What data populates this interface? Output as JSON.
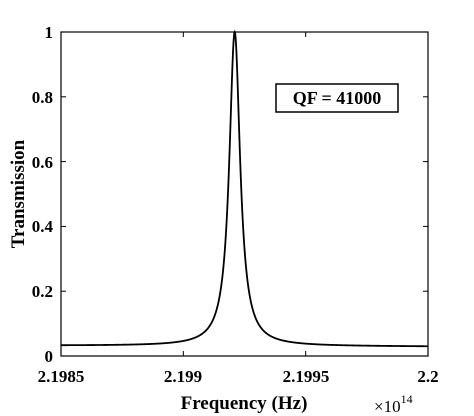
{
  "chart_data": {
    "type": "line",
    "title": "",
    "xlabel": "Frequency (Hz)",
    "ylabel": "Transmission",
    "x_multiplier_base": "×10",
    "x_multiplier_exponent": "14",
    "xlim": [
      2.1985,
      2.2
    ],
    "ylim": [
      0,
      1
    ],
    "x_ticks": [
      2.1985,
      2.199,
      2.1995,
      2.2
    ],
    "x_tick_labels": [
      "2.1985",
      "2.199",
      "2.1995",
      "2.2"
    ],
    "y_ticks": [
      0,
      0.2,
      0.4,
      0.6,
      0.8,
      1
    ],
    "y_tick_labels": [
      "0",
      "0.2",
      "0.4",
      "0.6",
      "0.8",
      "1"
    ],
    "grid": false,
    "legend": "none",
    "annotation": "QF = 41000",
    "series": [
      {
        "line_color": "#000000",
        "resonance_center": 2.19921,
        "half_width": 2.68e-05,
        "x": [
          2.1985,
          2.1986,
          2.1987,
          2.1988,
          2.1989,
          2.199,
          2.1991,
          2.19915,
          2.19918,
          2.19921,
          2.19924,
          2.19927,
          2.1993,
          2.1994,
          2.1995,
          2.1996,
          2.1997,
          2.1998,
          2.1999,
          2.2
        ],
        "y": [
          0.032,
          0.036,
          0.042,
          0.053,
          0.072,
          0.115,
          0.28,
          0.63,
          0.89,
          1.0,
          0.89,
          0.63,
          0.44,
          0.15,
          0.085,
          0.058,
          0.046,
          0.038,
          0.033,
          0.029
        ]
      }
    ]
  }
}
